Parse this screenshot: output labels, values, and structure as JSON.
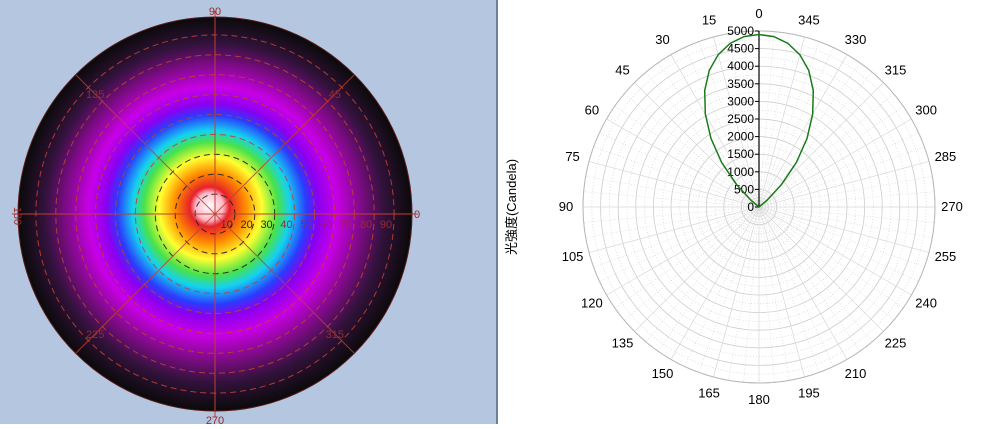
{
  "chart_data": [
    {
      "type": "heatmap",
      "subtype": "polar-isocandela",
      "angle_labels": [
        "90",
        "45",
        "0",
        "315",
        "270",
        "225",
        "180",
        "135"
      ],
      "radial_labels": [
        "10",
        "20",
        "30",
        "40",
        "50",
        "60",
        "70",
        "80",
        "90"
      ],
      "radial_range": [
        0,
        90
      ],
      "grid": true,
      "colors": {
        "label": "#9b2a2a",
        "grid": "#c0402f",
        "ring_dash": "#222222",
        "background": "#b4c6e0"
      },
      "color_stops": [
        {
          "r": 0.0,
          "color": "#ffffff"
        },
        {
          "r": 0.07,
          "color": "#ffb8c8"
        },
        {
          "r": 0.1,
          "color": "#e8202a"
        },
        {
          "r": 0.18,
          "color": "#ff8c00"
        },
        {
          "r": 0.26,
          "color": "#ffff30"
        },
        {
          "r": 0.34,
          "color": "#49e24a"
        },
        {
          "r": 0.4,
          "color": "#14d2f0"
        },
        {
          "r": 0.48,
          "color": "#2a3cff"
        },
        {
          "r": 0.54,
          "color": "#8a00f0"
        },
        {
          "r": 0.63,
          "color": "#c800e6"
        },
        {
          "r": 0.75,
          "color": "#7e0b86"
        },
        {
          "r": 0.86,
          "color": "#33123c"
        },
        {
          "r": 1.0,
          "color": "#0a0a0a"
        }
      ]
    },
    {
      "type": "line",
      "subtype": "polar",
      "ylabel": "光強度(Candela)",
      "angle_labels": [
        "0",
        "15",
        "30",
        "45",
        "60",
        "75",
        "90",
        "105",
        "120",
        "135",
        "150",
        "165",
        "180",
        "195",
        "210",
        "225",
        "240",
        "255",
        "270",
        "285",
        "300",
        "315",
        "330",
        "345"
      ],
      "radial_ticks": [
        0,
        500,
        1000,
        1500,
        2000,
        2500,
        3000,
        3500,
        4000,
        4500,
        5000
      ],
      "radial_range": [
        0,
        5000
      ],
      "grid": true,
      "series": [
        {
          "color": "#1a7a1a",
          "points": [
            {
              "angle": 0,
              "value": 4900
            },
            {
              "angle": 5,
              "value": 4860
            },
            {
              "angle": 10,
              "value": 4720
            },
            {
              "angle": 15,
              "value": 4480
            },
            {
              "angle": 20,
              "value": 4130
            },
            {
              "angle": 25,
              "value": 3650
            },
            {
              "angle": 30,
              "value": 3050
            },
            {
              "angle": 35,
              "value": 2380
            },
            {
              "angle": 40,
              "value": 1650
            },
            {
              "angle": 45,
              "value": 900
            },
            {
              "angle": 50,
              "value": 300
            },
            {
              "angle": 55,
              "value": 0
            },
            {
              "angle": 305,
              "value": 0
            },
            {
              "angle": 310,
              "value": 300
            },
            {
              "angle": 315,
              "value": 900
            },
            {
              "angle": 320,
              "value": 1650
            },
            {
              "angle": 325,
              "value": 2380
            },
            {
              "angle": 330,
              "value": 3050
            },
            {
              "angle": 335,
              "value": 3650
            },
            {
              "angle": 340,
              "value": 4130
            },
            {
              "angle": 345,
              "value": 4480
            },
            {
              "angle": 350,
              "value": 4720
            },
            {
              "angle": 355,
              "value": 4860
            },
            {
              "angle": 360,
              "value": 4900
            }
          ]
        }
      ]
    }
  ]
}
